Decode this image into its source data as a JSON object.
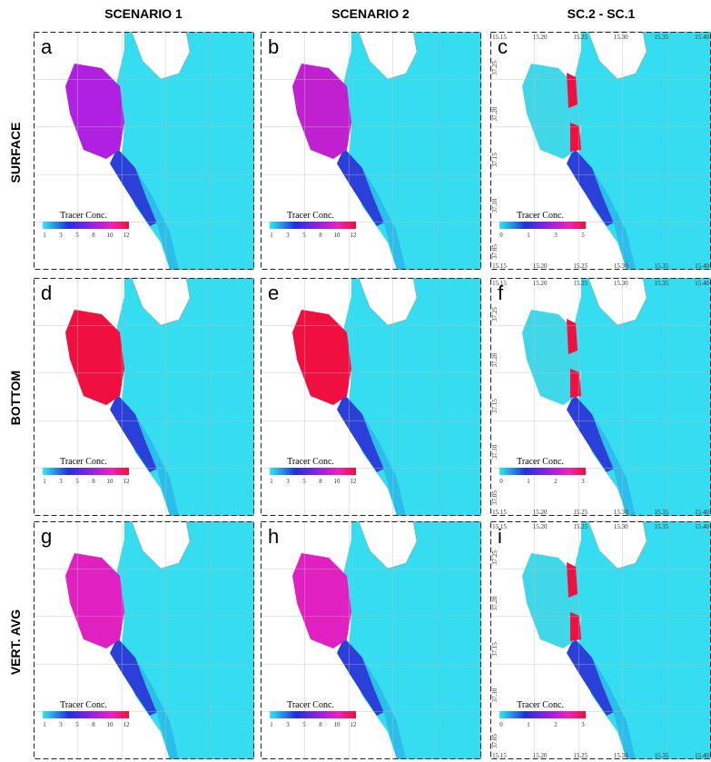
{
  "columns": [
    "SCENARIO 1",
    "SCENARIO 2",
    "SC.2 - SC.1"
  ],
  "rows": [
    "SURFACE",
    "BOTTOM",
    "VERT. AVG"
  ],
  "lon_ticks": [
    "15.15",
    "15.20",
    "15.25",
    "15.30",
    "15.35",
    "15.40"
  ],
  "lat_ticks": [
    "37.25",
    "37.20",
    "37.15",
    "37.10",
    "37.05"
  ],
  "panels": [
    {
      "letter": "a",
      "legend_title": "Tracer Conc.",
      "legend_ticks": [
        "1",
        "3",
        "5",
        "8",
        "10",
        "12"
      ]
    },
    {
      "letter": "b",
      "legend_title": "Tracer Conc.",
      "legend_ticks": [
        "1",
        "3",
        "5",
        "8",
        "10",
        "12"
      ]
    },
    {
      "letter": "c",
      "legend_title": "Tracer Conc.",
      "legend_ticks": [
        "0",
        "1",
        "3",
        "5"
      ]
    },
    {
      "letter": "d",
      "legend_title": "Tracer Conc.",
      "legend_ticks": [
        "1",
        "3",
        "5",
        "8",
        "10",
        "12"
      ]
    },
    {
      "letter": "e",
      "legend_title": "Tracer Conc.",
      "legend_ticks": [
        "1",
        "3",
        "5",
        "8",
        "10",
        "12"
      ]
    },
    {
      "letter": "f",
      "legend_title": "Tracer Conc.",
      "legend_ticks": [
        "0",
        "1",
        "2",
        "3"
      ]
    },
    {
      "letter": "g",
      "legend_title": "Tracer Conc.",
      "legend_ticks": [
        "1",
        "3",
        "5",
        "8",
        "10",
        "12"
      ]
    },
    {
      "letter": "h",
      "legend_title": "Tracer Conc.",
      "legend_ticks": [
        "1",
        "3",
        "5",
        "8",
        "10",
        "12"
      ]
    },
    {
      "letter": "i",
      "legend_title": "Tracer Conc.",
      "legend_ticks": [
        "0",
        "1",
        "2",
        "3"
      ]
    }
  ]
}
